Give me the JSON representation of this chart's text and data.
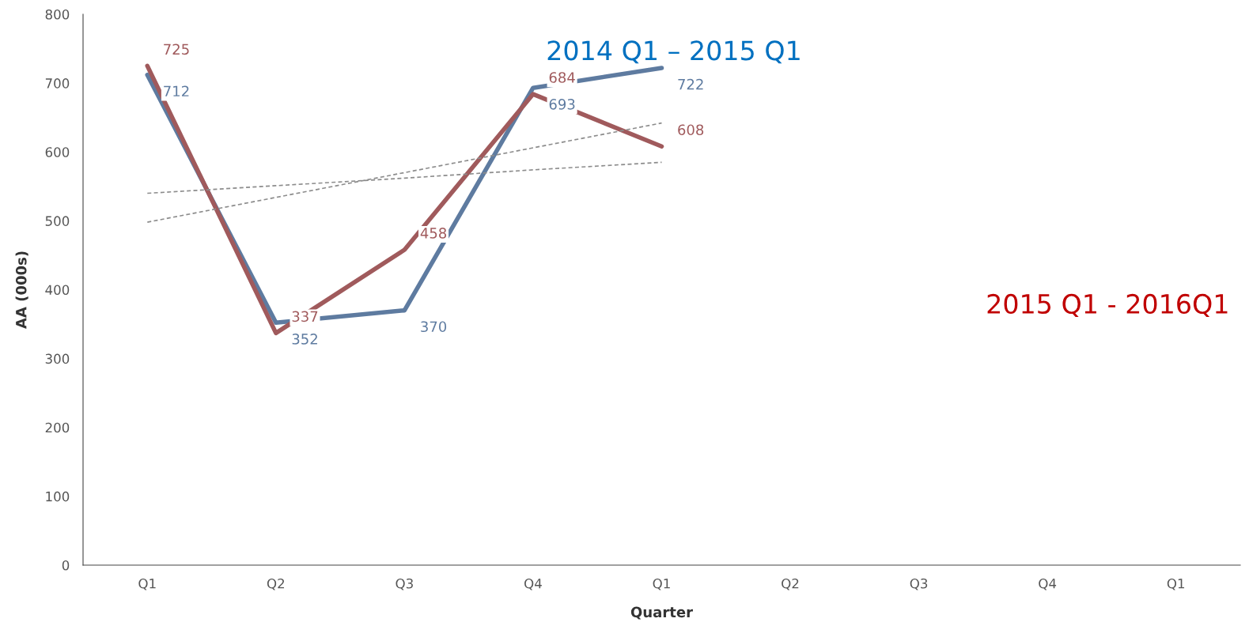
{
  "chart_data": {
    "type": "line",
    "xlabel": "Quarter",
    "ylabel": "AA (000s)",
    "categories": [
      "Q1",
      "Q2",
      "Q3",
      "Q4",
      "Q1",
      "Q2",
      "Q3",
      "Q4",
      "Q1"
    ],
    "series": [
      {
        "color": "#5e7ba0",
        "values": [
          712,
          352,
          370,
          693,
          722,
          null,
          null,
          null,
          null
        ],
        "data_labels": true
      },
      {
        "color": "#a05a5c",
        "values": [
          725,
          337,
          458,
          684,
          608,
          null,
          null,
          null,
          null
        ],
        "data_labels": true
      },
      {
        "color": "#8c8c8c",
        "line_style": "dashed",
        "values": [
          498,
          534,
          570,
          606,
          642,
          null,
          null,
          null,
          null
        ]
      },
      {
        "color": "#8c8c8c",
        "line_style": "dashed",
        "values": [
          540,
          551,
          562,
          574,
          585,
          null,
          null,
          null,
          null
        ]
      }
    ],
    "ylim": [
      0,
      800
    ],
    "yticks": [
      0,
      100,
      200,
      300,
      400,
      500,
      600,
      700,
      800
    ],
    "grid": false,
    "annotations": [
      "2014 Q1 – 2015 Q1",
      "2015 Q1 - 2016Q1"
    ]
  }
}
